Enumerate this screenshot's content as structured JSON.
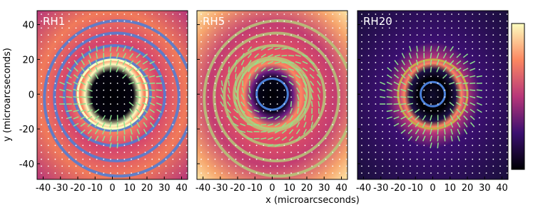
{
  "chart_data": {
    "type": "image",
    "panels": [
      {
        "title": "RH1"
      },
      {
        "title": "RH5"
      },
      {
        "title": "RH20"
      }
    ],
    "xlabel": "x (microarcseconds)",
    "ylabel": "y (microarcseconds)",
    "xlim": [
      -43.5,
      43.5
    ],
    "xticks": [
      -40,
      -30,
      -20,
      -10,
      0,
      10,
      20,
      30,
      40
    ],
    "ylim": [
      -49,
      48
    ],
    "yticks": [
      -40,
      -20,
      0,
      20,
      40
    ]
  }
}
